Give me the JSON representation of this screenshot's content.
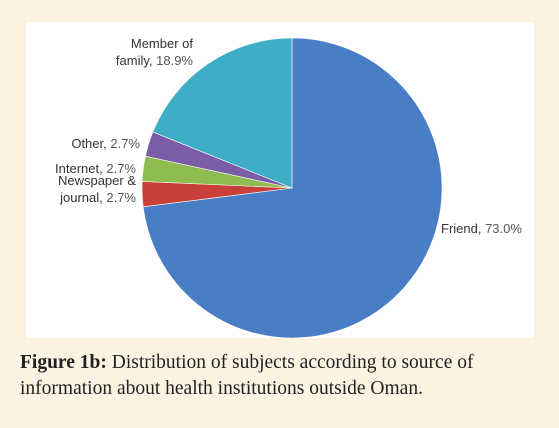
{
  "caption": {
    "label": "Figure 1b:",
    "text": "Distribution of subjects according to source of information about health institutions outside Oman."
  },
  "chart_data": {
    "type": "pie",
    "start_angle_deg": 0,
    "direction": "clockwise",
    "slices": [
      {
        "key": "friend",
        "label": "Friend,",
        "value": 73.0,
        "value_text": "73.0%",
        "color": "#4a7ec4"
      },
      {
        "key": "newspaper-journal",
        "label": "Newspaper & journal,",
        "value": 2.7,
        "value_text": "2.7%",
        "color": "#c9403b"
      },
      {
        "key": "internet",
        "label": "Internet,",
        "value": 2.7,
        "value_text": "2.7%",
        "color": "#8fbc4f"
      },
      {
        "key": "other",
        "label": "Other,",
        "value": 2.7,
        "value_text": "2.7%",
        "color": "#7a5da6"
      },
      {
        "key": "member-of-family",
        "label": "Member of family,",
        "value": 18.9,
        "value_text": "18.9%",
        "color": "#3eaec6"
      }
    ]
  }
}
